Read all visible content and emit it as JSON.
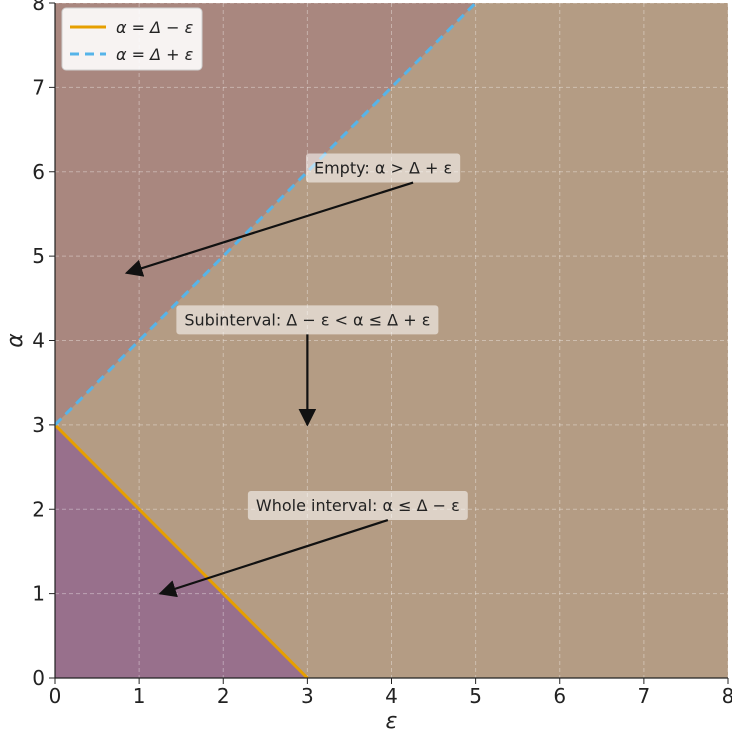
{
  "chart_data": {
    "type": "area",
    "title": "",
    "xlabel": "ε",
    "ylabel": "α",
    "xlim": [
      0,
      8
    ],
    "ylim": [
      0,
      8
    ],
    "x_ticks": [
      "0",
      "1",
      "2",
      "3",
      "4",
      "5",
      "6",
      "7",
      "8"
    ],
    "y_ticks": [
      "0",
      "1",
      "2",
      "3",
      "4",
      "5",
      "6",
      "7",
      "8"
    ],
    "grid": true,
    "legend_position": "top-left",
    "series": [
      {
        "name": "α = Δ − ε",
        "style": "solid",
        "color": "#E69F00",
        "x": [
          0,
          3
        ],
        "y": [
          3,
          0
        ]
      },
      {
        "name": "α = Δ + ε",
        "style": "dashed",
        "color": "#56B4E9",
        "x": [
          0,
          5
        ],
        "y": [
          3,
          8
        ]
      }
    ],
    "regions": [
      {
        "name": "whole",
        "color": "#98708C"
      },
      {
        "name": "sub",
        "color": "#B49C84"
      },
      {
        "name": "empty",
        "color": "#A9877F"
      }
    ],
    "annotations": [
      {
        "text": "Empty: α > Δ + ε",
        "text_at": [
          3.9,
          6.05
        ],
        "arrow_to": [
          0.85,
          4.8
        ]
      },
      {
        "text": "Subinterval: Δ − ε < α ≤ Δ + ε",
        "text_at": [
          3.0,
          4.25
        ],
        "arrow_to": [
          3.0,
          3.0
        ]
      },
      {
        "text": "Whole interval: α ≤ Δ − ε",
        "text_at": [
          3.6,
          2.05
        ],
        "arrow_to": [
          1.25,
          1.0
        ]
      }
    ]
  }
}
